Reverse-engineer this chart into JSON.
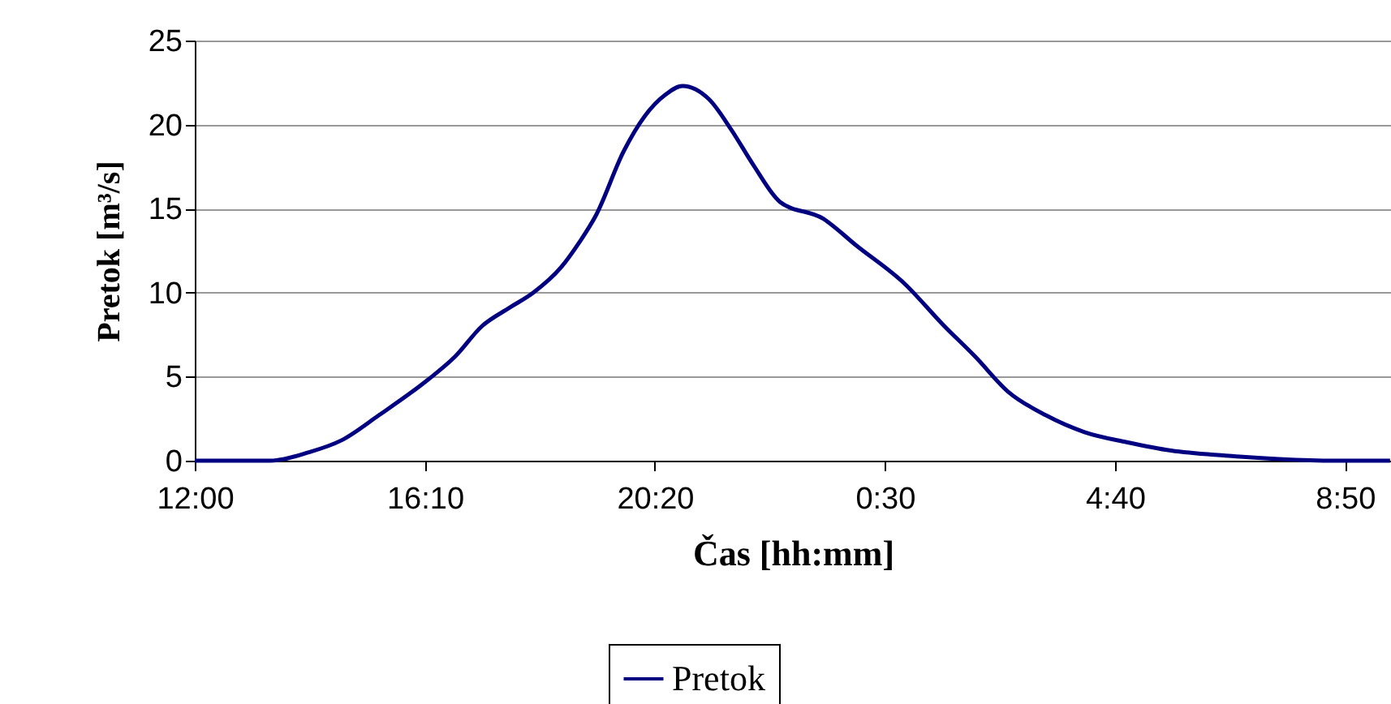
{
  "chart_data": {
    "type": "line",
    "xlabel": "Čas [hh:mm]",
    "ylabel": "Pretok [m³/s]",
    "x": [
      "2000-01-01T12:00",
      "2000-01-01T13:22",
      "2000-01-01T14:04",
      "2000-01-01T14:39",
      "2000-01-01T15:20",
      "2000-01-01T16:13",
      "2000-01-01T16:43",
      "2000-01-01T17:12",
      "2000-01-01T17:42",
      "2000-01-01T18:08",
      "2000-01-01T18:38",
      "2000-01-01T18:58",
      "2000-01-01T19:16",
      "2000-01-01T19:46",
      "2000-01-01T20:09",
      "2000-01-01T20:32",
      "2000-01-01T20:50",
      "2000-01-01T21:19",
      "2000-01-01T21:43",
      "2000-01-01T22:07",
      "2000-01-01T22:36",
      "2000-01-01T23:23",
      "2000-01-01T23:59",
      "2000-01-02T00:52",
      "2000-01-02T01:33",
      "2000-01-02T02:08",
      "2000-01-02T02:44",
      "2000-01-02T03:25",
      "2000-01-02T04:07",
      "2000-01-02T04:53",
      "2000-01-02T05:41",
      "2000-01-02T06:40",
      "2000-01-02T07:38",
      "2000-01-02T08:37",
      "2000-01-02T09:39"
    ],
    "series": [
      {
        "name": "Pretok",
        "color": "#000080",
        "values": [
          0,
          0,
          0.5,
          1.2,
          2.7,
          4.8,
          6.2,
          8.0,
          9.1,
          10.0,
          11.5,
          13.0,
          14.6,
          18.4,
          20.5,
          21.8,
          22.3,
          21.5,
          19.7,
          17.6,
          15.4,
          14.4,
          12.8,
          10.5,
          8.1,
          6.2,
          4.1,
          2.7,
          1.7,
          1.1,
          0.6,
          0.3,
          0.1,
          0,
          0
        ]
      }
    ],
    "xlim": [
      "2000-01-01T12:00",
      "2000-01-02T09:40"
    ],
    "xticks": [
      {
        "value": "2000-01-01T12:00",
        "label": "12:00"
      },
      {
        "value": "2000-01-01T16:10",
        "label": "16:10"
      },
      {
        "value": "2000-01-01T20:20",
        "label": "20:20"
      },
      {
        "value": "2000-01-02T00:30",
        "label": "0:30"
      },
      {
        "value": "2000-01-02T04:40",
        "label": "4:40"
      },
      {
        "value": "2000-01-02T08:50",
        "label": "8:50"
      }
    ],
    "ylim": [
      0,
      25
    ],
    "yticks": [
      0,
      5,
      10,
      15,
      20,
      25
    ],
    "grid": "y",
    "legend": "bottom",
    "marker": "none",
    "line_style": "solid"
  }
}
